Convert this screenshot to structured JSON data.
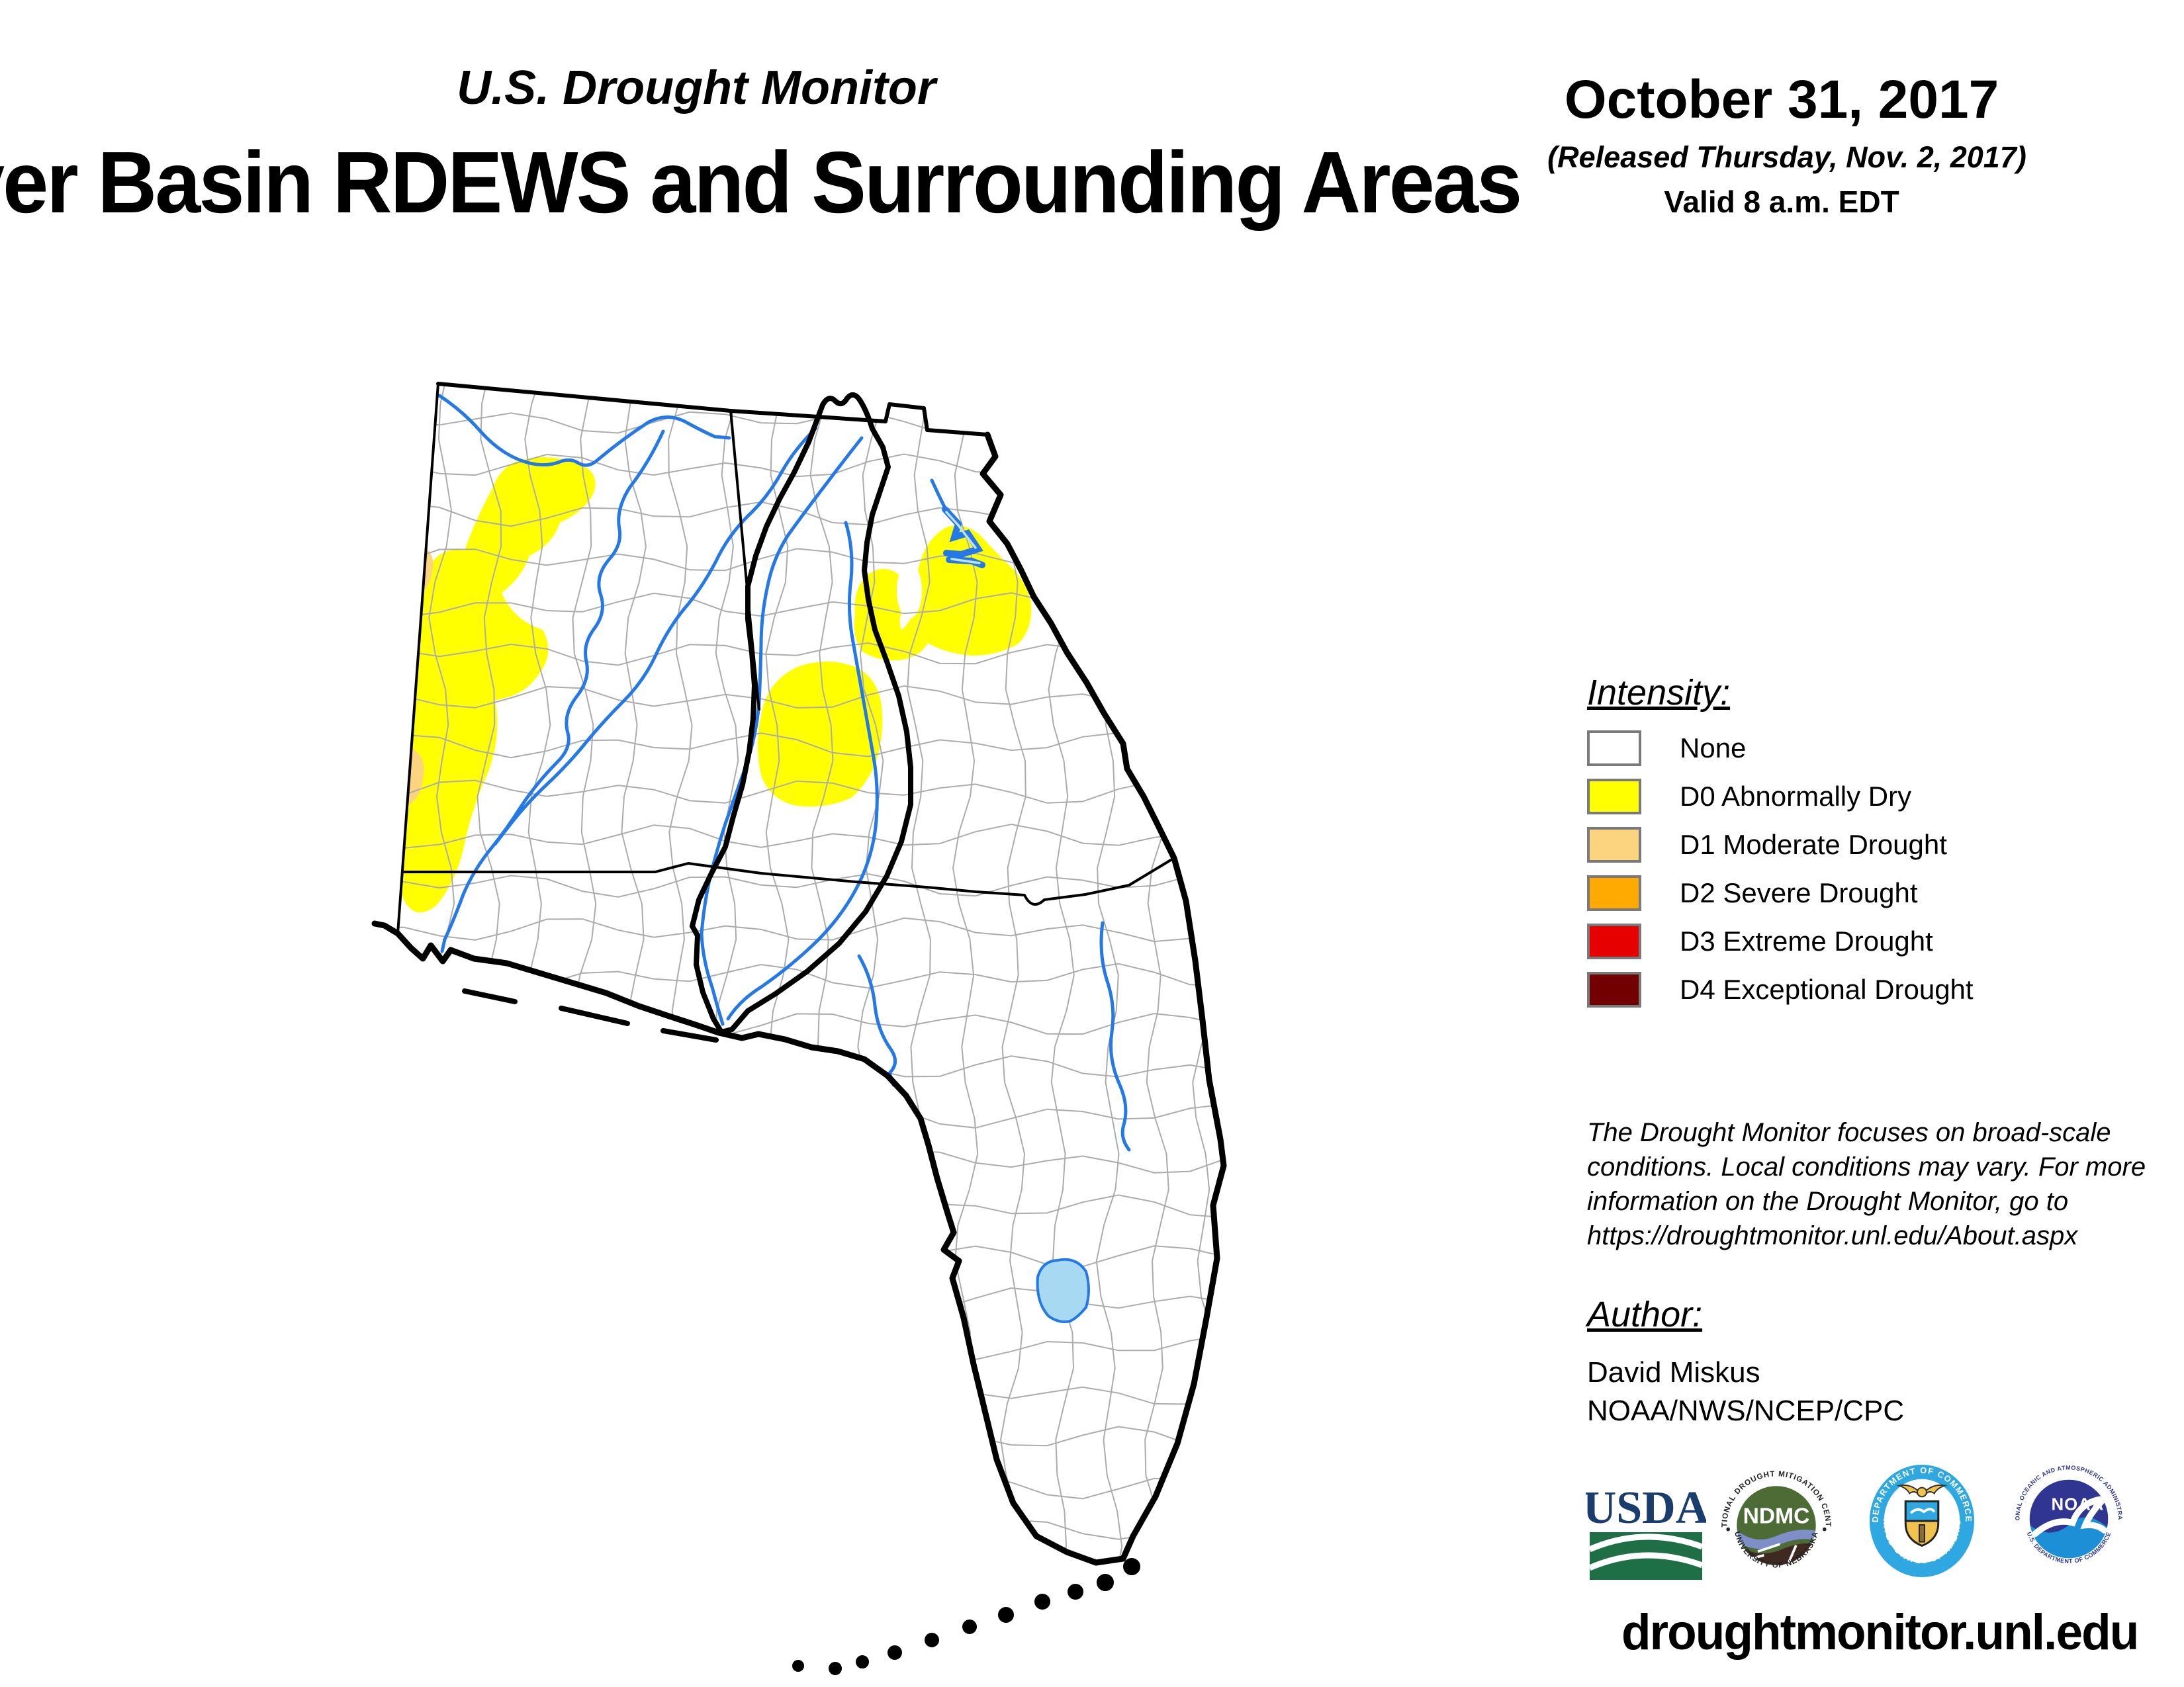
{
  "header": {
    "kicker": "U.S. Drought Monitor",
    "title": "ver Basin RDEWS and Surrounding Areas",
    "date": "October 31, 2017",
    "released": "(Released Thursday, Nov. 2, 2017)",
    "valid": "Valid 8 a.m. EDT"
  },
  "legend": {
    "title": "Intensity:",
    "items": [
      {
        "label": "None",
        "color": "#FFFFFF"
      },
      {
        "label": "D0 Abnormally Dry",
        "color": "#FFFF00"
      },
      {
        "label": "D1 Moderate Drought",
        "color": "#FCD37F"
      },
      {
        "label": "D2 Severe Drought",
        "color": "#FFAA00"
      },
      {
        "label": "D3 Extreme Drought",
        "color": "#E60000"
      },
      {
        "label": "D4 Exceptional Drought",
        "color": "#730000"
      }
    ]
  },
  "disclaimer": "The Drought Monitor focuses on broad-scale conditions. Local conditions may vary. For more information on the Drought Monitor, go to https://droughtmonitor.unl.edu/About.aspx",
  "author": {
    "label": "Author:",
    "name": "David Miskus",
    "org": "NOAA/NWS/NCEP/CPC"
  },
  "footer": {
    "url": "droughtmonitor.unl.edu"
  },
  "logos": {
    "usda": {
      "text": "USDA"
    },
    "ndmc": {
      "text": "NDMC",
      "ring_top": "NATIONAL DROUGHT MITIGATION CENTER",
      "ring_bottom": "UNIVERSITY OF NEBRASKA"
    },
    "doc": {
      "ring_top": "DEPARTMENT OF COMMERCE",
      "ring_bottom": "UNITED STATES OF AMERICA"
    },
    "noaa": {
      "text": "NOAA",
      "ring_top": "NATIONAL OCEANIC AND ATMOSPHERIC ADMINISTRATION",
      "ring_bottom": "U.S. DEPARTMENT OF COMMERCE"
    }
  },
  "map": {
    "states": [
      "Alabama",
      "Georgia",
      "Florida"
    ],
    "colors": {
      "d0": "#FFFF00",
      "d1": "#FCD37F",
      "river": "#2479E6",
      "lake_fill": "#A8D9F2",
      "county_line": "#ACACAC",
      "boundary": "#000000"
    },
    "d0_regions": [
      "western Alabama",
      "northeast Georgia",
      "central Georgia"
    ],
    "d1_regions": [
      "slivers on far western Alabama border"
    ],
    "water_features": [
      "Tennessee River",
      "Black Warrior / Tombigbee River",
      "Coosa / Alabama River",
      "Chattahoochee River",
      "Flint River",
      "Apalachicola River",
      "Savannah River lakes",
      "Suwannee River",
      "St. Johns River",
      "Lake Okeechobee"
    ]
  }
}
